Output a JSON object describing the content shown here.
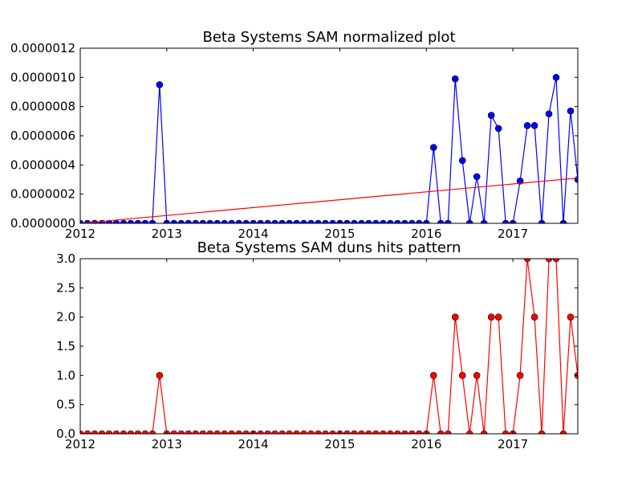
{
  "chart_data": [
    {
      "type": "line",
      "title": "Beta Systems SAM normalized plot",
      "xlabel": "",
      "ylabel": "",
      "xlim": [
        2012.0,
        2017.75
      ],
      "ylim": [
        0,
        1.2e-06
      ],
      "x_ticks": [
        2012,
        2013,
        2014,
        2015,
        2016,
        2017
      ],
      "x_tick_labels": [
        "2012",
        "2013",
        "2014",
        "2015",
        "2016",
        "2017"
      ],
      "y_ticks": [
        0,
        2e-07,
        4e-07,
        6e-07,
        8e-07,
        1e-06,
        1.2e-06
      ],
      "y_tick_labels": [
        "0.0000000",
        "0.0000002",
        "0.0000004",
        "0.0000006",
        "0.0000008",
        "0.0000010",
        "0.0000012"
      ],
      "grid": false,
      "series": [
        {
          "color": "#0000ff",
          "marker": "circle",
          "x_start": 2012.0,
          "x_step_months": 1,
          "values": [
            0,
            0,
            0,
            0,
            0,
            0,
            0,
            0,
            0,
            0,
            0,
            9.5e-07,
            0,
            0,
            0,
            0,
            0,
            0,
            0,
            0,
            0,
            0,
            0,
            0,
            0,
            0,
            0,
            0,
            0,
            0,
            0,
            0,
            0,
            0,
            0,
            0,
            0,
            0,
            0,
            0,
            0,
            0,
            0,
            0,
            0,
            0,
            0,
            0,
            0,
            5.2e-07,
            0,
            0,
            9.9e-07,
            4.3e-07,
            0,
            3.2e-07,
            0,
            7.4e-07,
            6.5e-07,
            0,
            0,
            2.9e-07,
            6.7e-07,
            6.7e-07,
            0,
            7.5e-07,
            1e-06,
            0,
            7.7e-07,
            3e-07
          ]
        },
        {
          "color": "#ff0000",
          "marker": "none",
          "kind": "trend-line",
          "x": [
            2012.0,
            2017.75
          ],
          "values": [
            0,
            3.1e-07
          ]
        }
      ]
    },
    {
      "type": "line",
      "title": "Beta Systems SAM duns hits pattern",
      "xlabel": "",
      "ylabel": "",
      "xlim": [
        2012.0,
        2017.75
      ],
      "ylim": [
        0,
        3
      ],
      "x_ticks": [
        2012,
        2013,
        2014,
        2015,
        2016,
        2017
      ],
      "x_tick_labels": [
        "2012",
        "2013",
        "2014",
        "2015",
        "2016",
        "2017"
      ],
      "y_ticks": [
        0,
        0.5,
        1,
        1.5,
        2,
        2.5,
        3
      ],
      "y_tick_labels": [
        "0.0",
        "0.5",
        "1.0",
        "1.5",
        "2.0",
        "2.5",
        "3.0"
      ],
      "grid": false,
      "series": [
        {
          "color": "#ff0000",
          "marker": "circle",
          "x_start": 2012.0,
          "x_step_months": 1,
          "values": [
            0,
            0,
            0,
            0,
            0,
            0,
            0,
            0,
            0,
            0,
            0,
            1,
            0,
            0,
            0,
            0,
            0,
            0,
            0,
            0,
            0,
            0,
            0,
            0,
            0,
            0,
            0,
            0,
            0,
            0,
            0,
            0,
            0,
            0,
            0,
            0,
            0,
            0,
            0,
            0,
            0,
            0,
            0,
            0,
            0,
            0,
            0,
            0,
            0,
            1,
            0,
            0,
            2,
            1,
            0,
            1,
            0,
            2,
            2,
            0,
            0,
            1,
            3,
            2,
            0,
            3,
            3,
            0,
            2,
            1
          ]
        }
      ]
    }
  ]
}
